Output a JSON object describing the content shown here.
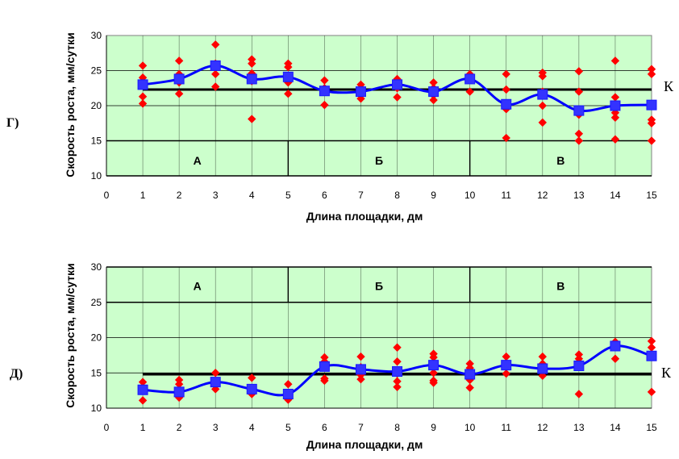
{
  "colors": {
    "plot_bg": "#ccffcc",
    "grid": "#000000",
    "mean_line": "#0000ff",
    "mean_marker": "#3333ff",
    "points": "#ff0000",
    "reference": "#000000"
  },
  "chart_data": [
    {
      "type": "scatter",
      "panel_label": "Г)",
      "xlabel": "Длина площадки, дм",
      "ylabel": "Скорость роста, мм/сутки",
      "xlim": [
        0,
        15
      ],
      "ylim": [
        10,
        30
      ],
      "x_ticks": [
        0,
        1,
        2,
        3,
        4,
        5,
        6,
        7,
        8,
        9,
        10,
        11,
        12,
        13,
        14,
        15
      ],
      "y_ticks": [
        10,
        15,
        20,
        25,
        30
      ],
      "grid": true,
      "zones": [
        {
          "label": "А",
          "x_from": 0,
          "x_to": 5
        },
        {
          "label": "Б",
          "x_from": 5,
          "x_to": 10
        },
        {
          "label": "В",
          "x_from": 10,
          "x_to": 15
        }
      ],
      "zone_label_y": 12.2,
      "zone_band": [
        10,
        15
      ],
      "reference": {
        "label": "К",
        "y": 22.3
      },
      "mean_series": {
        "x": [
          1,
          2,
          3,
          4,
          5,
          6,
          7,
          8,
          9,
          10,
          11,
          12,
          13,
          14,
          15
        ],
        "y": [
          23,
          23.8,
          25.7,
          23.8,
          24.1,
          22.1,
          22,
          23,
          22,
          23.8,
          20.2,
          21.6,
          19.3,
          20,
          20.1
        ]
      },
      "individual_points": [
        {
          "x": 1,
          "y": [
            25.7,
            24,
            23.3,
            21.3,
            20.3
          ]
        },
        {
          "x": 2,
          "y": [
            26.4,
            24.5,
            23.3,
            21.7
          ]
        },
        {
          "x": 3,
          "y": [
            28.7,
            26,
            24.5,
            22.7
          ]
        },
        {
          "x": 4,
          "y": [
            26.6,
            26,
            24.6,
            23.5,
            18.1
          ]
        },
        {
          "x": 5,
          "y": [
            26,
            25.5,
            23.3,
            21.7
          ]
        },
        {
          "x": 6,
          "y": [
            23.6,
            22.5,
            20.1
          ]
        },
        {
          "x": 7,
          "y": [
            23,
            21.5,
            21
          ]
        },
        {
          "x": 8,
          "y": [
            23.8,
            22.5,
            21.2
          ]
        },
        {
          "x": 9,
          "y": [
            23.3,
            22.5,
            21.5,
            20.8
          ]
        },
        {
          "x": 10,
          "y": [
            24.5,
            22
          ]
        },
        {
          "x": 11,
          "y": [
            24.5,
            22.3,
            19.5,
            15.4
          ]
        },
        {
          "x": 12,
          "y": [
            24.7,
            24.2,
            22,
            20,
            17.6
          ]
        },
        {
          "x": 13,
          "y": [
            24.9,
            22,
            18.7,
            16,
            15
          ]
        },
        {
          "x": 14,
          "y": [
            26.4,
            21.2,
            19,
            18.3,
            15.2
          ]
        },
        {
          "x": 15,
          "y": [
            25.2,
            24.5,
            18,
            17.5,
            15
          ]
        }
      ]
    },
    {
      "type": "scatter",
      "panel_label": "Д)",
      "xlabel": "Длина площадки, дм",
      "ylabel": "Скорость роста, мм/сутки",
      "xlim": [
        0,
        15
      ],
      "ylim": [
        10,
        30
      ],
      "x_ticks": [
        0,
        1,
        2,
        3,
        4,
        5,
        6,
        7,
        8,
        9,
        10,
        11,
        12,
        13,
        14,
        15
      ],
      "y_ticks": [
        10,
        15,
        20,
        25,
        30
      ],
      "grid": true,
      "zones": [
        {
          "label": "А",
          "x_from": 0,
          "x_to": 5
        },
        {
          "label": "Б",
          "x_from": 5,
          "x_to": 10
        },
        {
          "label": "В",
          "x_from": 10,
          "x_to": 15
        }
      ],
      "zone_label_y": 27.3,
      "zone_band": [
        25,
        30
      ],
      "reference": {
        "label": "К",
        "y": 14.8
      },
      "mean_series": {
        "x": [
          1,
          2,
          3,
          4,
          5,
          6,
          7,
          8,
          9,
          10,
          11,
          12,
          13,
          14,
          15
        ],
        "y": [
          12.6,
          12.3,
          13.7,
          12.7,
          12,
          15.9,
          15.5,
          15.2,
          16.1,
          14.8,
          16.1,
          15.6,
          16,
          18.8,
          17.4
        ]
      },
      "individual_points": [
        {
          "x": 1,
          "y": [
            13.7,
            12.5,
            11.1
          ]
        },
        {
          "x": 2,
          "y": [
            14,
            13.4,
            11.5
          ]
        },
        {
          "x": 3,
          "y": [
            15,
            13.4,
            12.7
          ]
        },
        {
          "x": 4,
          "y": [
            14.3,
            12
          ]
        },
        {
          "x": 5,
          "y": [
            13.4,
            11.2
          ]
        },
        {
          "x": 6,
          "y": [
            17.2,
            16.6,
            14.2,
            13.9
          ]
        },
        {
          "x": 7,
          "y": [
            17.3,
            15.8,
            14.7,
            14.1
          ]
        },
        {
          "x": 8,
          "y": [
            18.6,
            16.6,
            14.9,
            13.8,
            13
          ]
        },
        {
          "x": 9,
          "y": [
            17.7,
            17.2,
            15,
            13.9,
            13.6
          ]
        },
        {
          "x": 10,
          "y": [
            16.3,
            15.7,
            14,
            12.9
          ]
        },
        {
          "x": 11,
          "y": [
            17.3,
            16.4,
            14.9
          ]
        },
        {
          "x": 12,
          "y": [
            17.3,
            16.3,
            15.2,
            14.6
          ]
        },
        {
          "x": 13,
          "y": [
            17.6,
            17,
            16,
            12
          ]
        },
        {
          "x": 14,
          "y": [
            19.4,
            17
          ]
        },
        {
          "x": 15,
          "y": [
            19.5,
            18.6,
            17.3,
            12.3
          ]
        }
      ]
    }
  ]
}
